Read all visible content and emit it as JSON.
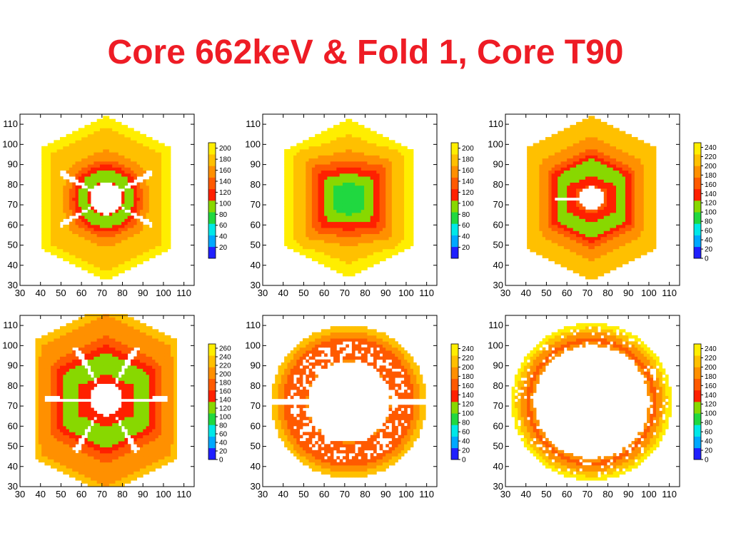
{
  "slide": {
    "title": "Core 662keV & Fold 1, Core T90"
  },
  "colorscale": [
    "#2020ff",
    "#00a8ff",
    "#00e8e8",
    "#20d840",
    "#88d800",
    "#ff2000",
    "#ff5a00",
    "#ff9000",
    "#ffc000",
    "#ffee00"
  ],
  "chart_data": [
    {
      "type": "heatmap",
      "title": "",
      "xlim": [
        30,
        115
      ],
      "ylim": [
        30,
        115
      ],
      "xticks": [
        30,
        40,
        50,
        60,
        70,
        80,
        90,
        100,
        110
      ],
      "yticks": [
        30,
        40,
        50,
        60,
        70,
        80,
        90,
        100,
        110
      ],
      "colorbar": {
        "range": [
          0,
          210
        ],
        "labels": [
          20,
          40,
          60,
          80,
          100,
          120,
          140,
          160,
          180,
          200
        ]
      },
      "map": {
        "outline": "hexagon",
        "center": [
          72,
          73
        ],
        "outer": [
          62,
          82
        ],
        "outer_value": 180,
        "ring_radius": 12,
        "ring_width": 6,
        "ring_value": 125,
        "ring_shape": "round",
        "inner_radius": 8,
        "spokes": [
          30,
          150,
          210,
          330
        ],
        "spoke_length": 18,
        "noise": 0
      }
    },
    {
      "type": "heatmap",
      "title": "",
      "xlim": [
        30,
        115
      ],
      "ylim": [
        30,
        115
      ],
      "xticks": [
        30,
        40,
        50,
        60,
        70,
        80,
        90,
        100,
        110
      ],
      "yticks": [
        30,
        40,
        50,
        60,
        70,
        80,
        90,
        100,
        110
      ],
      "colorbar": {
        "range": [
          0,
          210
        ],
        "labels": [
          20,
          40,
          60,
          80,
          100,
          120,
          140,
          160,
          180,
          200
        ]
      },
      "map": {
        "outline": "hexagon",
        "center": [
          72,
          73
        ],
        "outer": [
          62,
          79
        ],
        "outer_value": 185,
        "ring_radius": 6,
        "ring_width": 12,
        "ring_value": 120,
        "ring_shape": "square",
        "inner_radius": 0,
        "spokes": [],
        "spoke_length": 0,
        "noise": 0
      }
    },
    {
      "type": "heatmap",
      "title": "",
      "xlim": [
        30,
        115
      ],
      "ylim": [
        30,
        115
      ],
      "xticks": [
        30,
        40,
        50,
        60,
        70,
        80,
        90,
        100,
        110
      ],
      "yticks": [
        30,
        40,
        50,
        60,
        70,
        80,
        90,
        100,
        110
      ],
      "colorbar": {
        "range": [
          0,
          250
        ],
        "labels": [
          0,
          20,
          40,
          60,
          80,
          100,
          120,
          140,
          160,
          180,
          200,
          220,
          240
        ]
      },
      "map": {
        "outline": "hexagon",
        "center": [
          72,
          73
        ],
        "outer": [
          63,
          82
        ],
        "outer_value": 200,
        "ring_radius": 15,
        "ring_width": 6,
        "ring_value": 130,
        "ring_shape": "hex",
        "inner_radius": 6,
        "spokes": [
          180
        ],
        "spoke_length": 12,
        "noise": 0
      }
    },
    {
      "type": "heatmap",
      "title": "",
      "xlim": [
        30,
        115
      ],
      "ylim": [
        30,
        115
      ],
      "xticks": [
        30,
        40,
        50,
        60,
        70,
        80,
        90,
        100,
        110
      ],
      "yticks": [
        30,
        40,
        50,
        60,
        70,
        80,
        90,
        100,
        110
      ],
      "colorbar": {
        "range": [
          0,
          270
        ],
        "labels": [
          0,
          20,
          40,
          60,
          80,
          100,
          120,
          140,
          160,
          180,
          200,
          220,
          240,
          260
        ]
      },
      "map": {
        "outline": "hexagon",
        "center": [
          72,
          73
        ],
        "outer": [
          70,
          94
        ],
        "outer_value": 205,
        "ring_radius": 18,
        "ring_width": 8,
        "ring_value": 140,
        "ring_shape": "hex",
        "inner_radius": 8,
        "spokes": [
          0,
          60,
          120,
          180,
          240,
          300
        ],
        "spoke_length": 22,
        "noise": 0
      }
    },
    {
      "type": "heatmap",
      "title": "",
      "xlim": [
        30,
        115
      ],
      "ylim": [
        30,
        115
      ],
      "xticks": [
        30,
        40,
        50,
        60,
        70,
        80,
        90,
        100,
        110
      ],
      "yticks": [
        30,
        40,
        50,
        60,
        70,
        80,
        90,
        100,
        110
      ],
      "colorbar": {
        "range": [
          0,
          250
        ],
        "labels": [
          0,
          20,
          40,
          60,
          80,
          100,
          120,
          140,
          160,
          180,
          200,
          220,
          240
        ]
      },
      "map": {
        "outline": "circle",
        "center": [
          72,
          72
        ],
        "outer": [
          38,
          38
        ],
        "outer_value": 215,
        "ring_radius": 28,
        "ring_width": 8,
        "ring_value": 155,
        "ring_shape": "round",
        "inner_radius": 20,
        "spokes": [
          0,
          180
        ],
        "spoke_length": 28,
        "noise": 0.35
      }
    },
    {
      "type": "heatmap",
      "title": "",
      "xlim": [
        30,
        115
      ],
      "ylim": [
        30,
        115
      ],
      "xticks": [
        30,
        40,
        50,
        60,
        70,
        80,
        90,
        100,
        110
      ],
      "yticks": [
        30,
        40,
        50,
        60,
        70,
        80,
        90,
        100,
        110
      ],
      "colorbar": {
        "range": [
          0,
          250
        ],
        "labels": [
          0,
          20,
          40,
          60,
          80,
          100,
          120,
          140,
          160,
          180,
          200,
          220,
          240
        ]
      },
      "map": {
        "outline": "circle",
        "center": [
          72,
          72
        ],
        "outer": [
          39,
          39
        ],
        "outer_value": 225,
        "ring_radius": 31,
        "ring_width": 5,
        "ring_value": 170,
        "ring_shape": "round",
        "inner_radius": 28,
        "spokes": [],
        "spoke_length": 0,
        "noise": 0.15
      }
    }
  ]
}
